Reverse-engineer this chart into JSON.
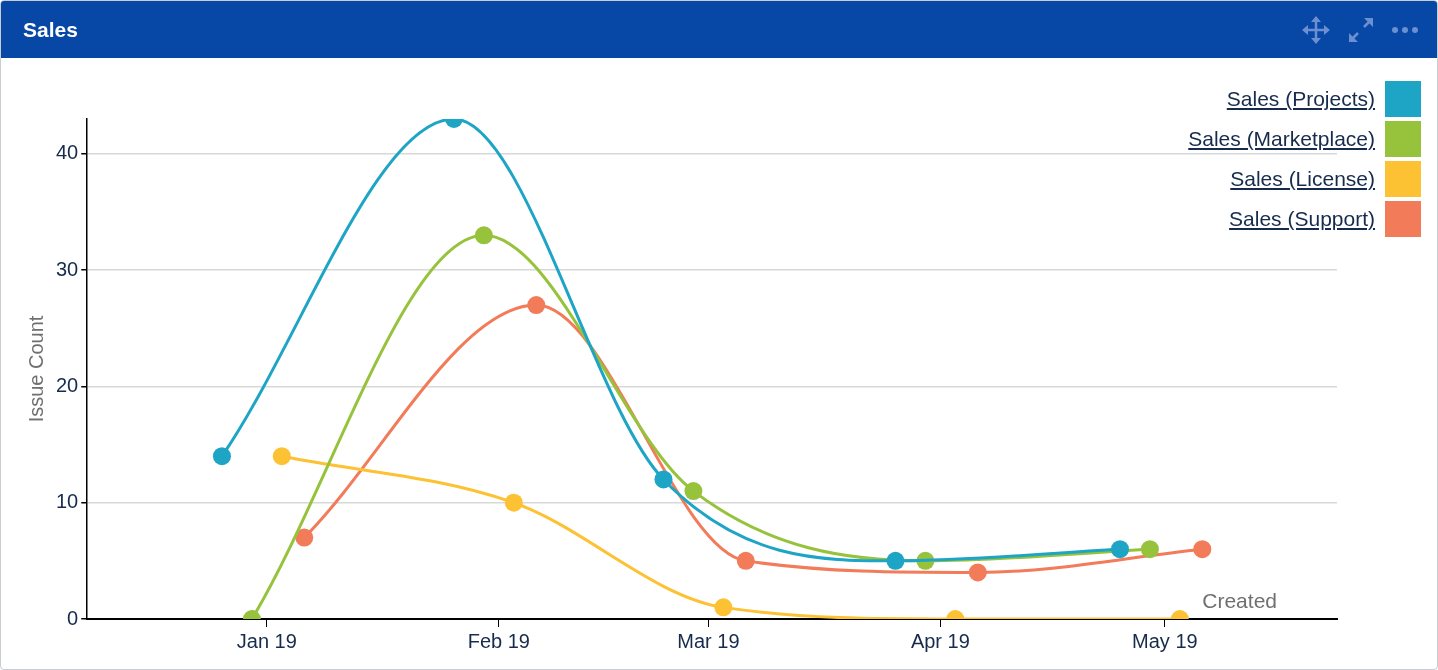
{
  "chart_data": {
    "type": "line",
    "title": "Sales",
    "xlabel": "Created",
    "ylabel": "Issue Count",
    "xlim": [
      "2018-12-08",
      "2019-05-24"
    ],
    "xticks": [
      {
        "value": "2019-01",
        "label": "Jan 19"
      },
      {
        "value": "2019-02",
        "label": "Feb 19"
      },
      {
        "value": "2019-03",
        "label": "Mar 19"
      },
      {
        "value": "2019-04",
        "label": "Apr 19"
      },
      {
        "value": "2019-05",
        "label": "May 19"
      }
    ],
    "ylim": [
      0,
      43
    ],
    "yticks": [
      0,
      10,
      20,
      30,
      40
    ],
    "grid": "y",
    "legend": "top right",
    "marker": "circle",
    "line_style": "solid",
    "series": [
      {
        "name": "Sales (Projects)",
        "color": "#1ea5c5",
        "x": [
          "2018-12-26",
          "2019-01-26",
          "2019-02-23",
          "2019-03-26",
          "2019-04-25"
        ],
        "values": [
          14,
          43,
          12,
          5,
          6
        ]
      },
      {
        "name": "Sales (Marketplace)",
        "color": "#97c23c",
        "x": [
          "2018-12-30",
          "2019-01-30",
          "2019-02-27",
          "2019-03-30",
          "2019-04-29"
        ],
        "values": [
          0,
          33,
          11,
          5,
          6
        ]
      },
      {
        "name": "Sales (License)",
        "color": "#fdc134",
        "x": [
          "2019-01-03",
          "2019-02-03",
          "2019-03-03",
          "2019-04-03",
          "2019-05-03"
        ],
        "values": [
          14,
          10,
          1,
          0,
          0
        ]
      },
      {
        "name": "Sales (Support)",
        "color": "#f27b59",
        "x": [
          "2019-01-06",
          "2019-02-06",
          "2019-03-06",
          "2019-04-06",
          "2019-05-06"
        ],
        "values": [
          7,
          27,
          5,
          4,
          6
        ]
      }
    ]
  }
}
